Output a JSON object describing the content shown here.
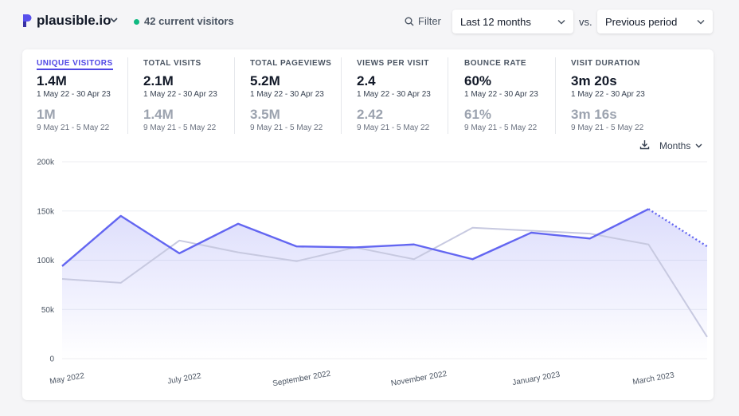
{
  "header": {
    "site_name": "plausible.io",
    "current_visitors": "42 current visitors",
    "filter_label": "Filter",
    "period": "Last 12 months",
    "vs_label": "vs.",
    "compare": "Previous period",
    "accent": "#6366f1",
    "live_color": "#10b981"
  },
  "metrics": [
    {
      "label": "UNIQUE VISITORS",
      "value": "1.4M",
      "range": "1 May 22 - 30 Apr 23",
      "prev_value": "1M",
      "prev_range": "9 May 21 - 5 May 22",
      "active": true
    },
    {
      "label": "TOTAL VISITS",
      "value": "2.1M",
      "range": "1 May 22 - 30 Apr 23",
      "prev_value": "1.4M",
      "prev_range": "9 May 21 - 5 May 22"
    },
    {
      "label": "TOTAL PAGEVIEWS",
      "value": "5.2M",
      "range": "1 May 22 - 30 Apr 23",
      "prev_value": "3.5M",
      "prev_range": "9 May 21 - 5 May 22"
    },
    {
      "label": "VIEWS PER VISIT",
      "value": "2.4",
      "range": "1 May 22 - 30 Apr 23",
      "prev_value": "2.42",
      "prev_range": "9 May 21 - 5 May 22"
    },
    {
      "label": "BOUNCE RATE",
      "value": "60%",
      "range": "1 May 22 - 30 Apr 23",
      "prev_value": "61%",
      "prev_range": "9 May 21 - 5 May 22"
    },
    {
      "label": "VISIT DURATION",
      "value": "3m 20s",
      "range": "1 May 22 - 30 Apr 23",
      "prev_value": "3m 16s",
      "prev_range": "9 May 21 - 5 May 22"
    }
  ],
  "chart_controls": {
    "interval": "Months",
    "download_icon": "download-icon"
  },
  "chart_data": {
    "type": "line",
    "x": [
      "May 2022",
      "Jun 2022",
      "Jul 2022",
      "Aug 2022",
      "Sep 2022",
      "Oct 2022",
      "Nov 2022",
      "Dec 2022",
      "Jan 2023",
      "Feb 2023",
      "Mar 2023",
      "Apr 2023"
    ],
    "x_tick_labels": [
      "May 2022",
      "July 2022",
      "September 2022",
      "November 2022",
      "January 2023",
      "March 2023"
    ],
    "y_tick_labels": [
      "0",
      "50k",
      "100k",
      "150k",
      "200k"
    ],
    "ylim": [
      0,
      200000
    ],
    "grid": true,
    "series": [
      {
        "values": [
          94000,
          145000,
          107000,
          137000,
          114000,
          113000,
          116000,
          101000,
          128000,
          122000,
          152000,
          114000
        ],
        "color": "#6366f1",
        "last_segment_dotted": true
      },
      {
        "values": [
          81000,
          77000,
          120000,
          108000,
          99000,
          113000,
          101000,
          133000,
          130000,
          127000,
          116000,
          22000
        ],
        "color": "#c7c9e0"
      }
    ]
  }
}
